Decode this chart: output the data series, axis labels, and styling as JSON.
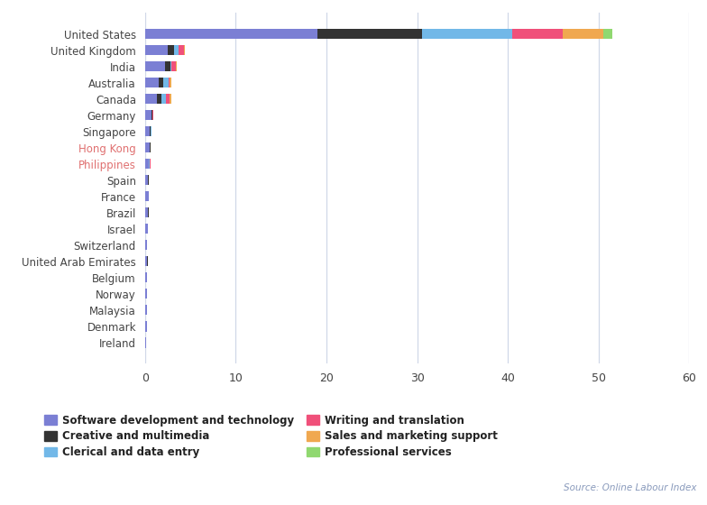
{
  "countries": [
    "United States",
    "United Kingdom",
    "India",
    "Australia",
    "Canada",
    "Germany",
    "Singapore",
    "Hong Kong",
    "Philippines",
    "Spain",
    "France",
    "Brazil",
    "Israel",
    "Switzerland",
    "United Arab Emirates",
    "Belgium",
    "Norway",
    "Malaysia",
    "Denmark",
    "Ireland"
  ],
  "categories": [
    "Software development and technology",
    "Creative and multimedia",
    "Clerical and data entry",
    "Writing and translation",
    "Sales and marketing support",
    "Professional services"
  ],
  "colors": [
    "#7b7fd4",
    "#333333",
    "#72b8e8",
    "#f0507a",
    "#f0a850",
    "#90d870"
  ],
  "values": [
    [
      19.0,
      11.5,
      10.0,
      5.5,
      4.5,
      1.0
    ],
    [
      2.5,
      0.7,
      0.55,
      0.55,
      0.1,
      0.0
    ],
    [
      2.2,
      0.6,
      0.15,
      0.5,
      0.05,
      0.0
    ],
    [
      1.5,
      0.5,
      0.65,
      0.1,
      0.2,
      0.0
    ],
    [
      1.35,
      0.5,
      0.5,
      0.4,
      0.2,
      0.0
    ],
    [
      0.7,
      0.12,
      0.0,
      0.07,
      0.0,
      0.0
    ],
    [
      0.55,
      0.08,
      0.08,
      0.0,
      0.0,
      0.0
    ],
    [
      0.5,
      0.08,
      0.08,
      0.0,
      0.0,
      0.0
    ],
    [
      0.4,
      0.05,
      0.05,
      0.08,
      0.0,
      0.0
    ],
    [
      0.28,
      0.12,
      0.0,
      0.0,
      0.0,
      0.0
    ],
    [
      0.38,
      0.0,
      0.0,
      0.0,
      0.0,
      0.0
    ],
    [
      0.32,
      0.08,
      0.0,
      0.0,
      0.0,
      0.0
    ],
    [
      0.28,
      0.04,
      0.04,
      0.0,
      0.0,
      0.0
    ],
    [
      0.25,
      0.0,
      0.0,
      0.0,
      0.0,
      0.0
    ],
    [
      0.25,
      0.04,
      0.0,
      0.0,
      0.0,
      0.0
    ],
    [
      0.2,
      0.04,
      0.0,
      0.0,
      0.0,
      0.0
    ],
    [
      0.22,
      0.0,
      0.0,
      0.0,
      0.0,
      0.0
    ],
    [
      0.18,
      0.0,
      0.0,
      0.0,
      0.0,
      0.0
    ],
    [
      0.2,
      0.04,
      0.0,
      0.0,
      0.0,
      0.0
    ],
    [
      0.16,
      0.0,
      0.0,
      0.0,
      0.0,
      0.0
    ]
  ],
  "colored_labels": [
    "Hong Kong",
    "Philippines"
  ],
  "label_color_special": "#e07070",
  "label_color_default": "#444444",
  "xlim": [
    0,
    60
  ],
  "xticks": [
    0,
    10,
    20,
    30,
    40,
    50,
    60
  ],
  "background_color": "#ffffff",
  "grid_color": "#d0d8e8",
  "source_text": "Source: Online Labour Index",
  "bar_height": 0.65
}
